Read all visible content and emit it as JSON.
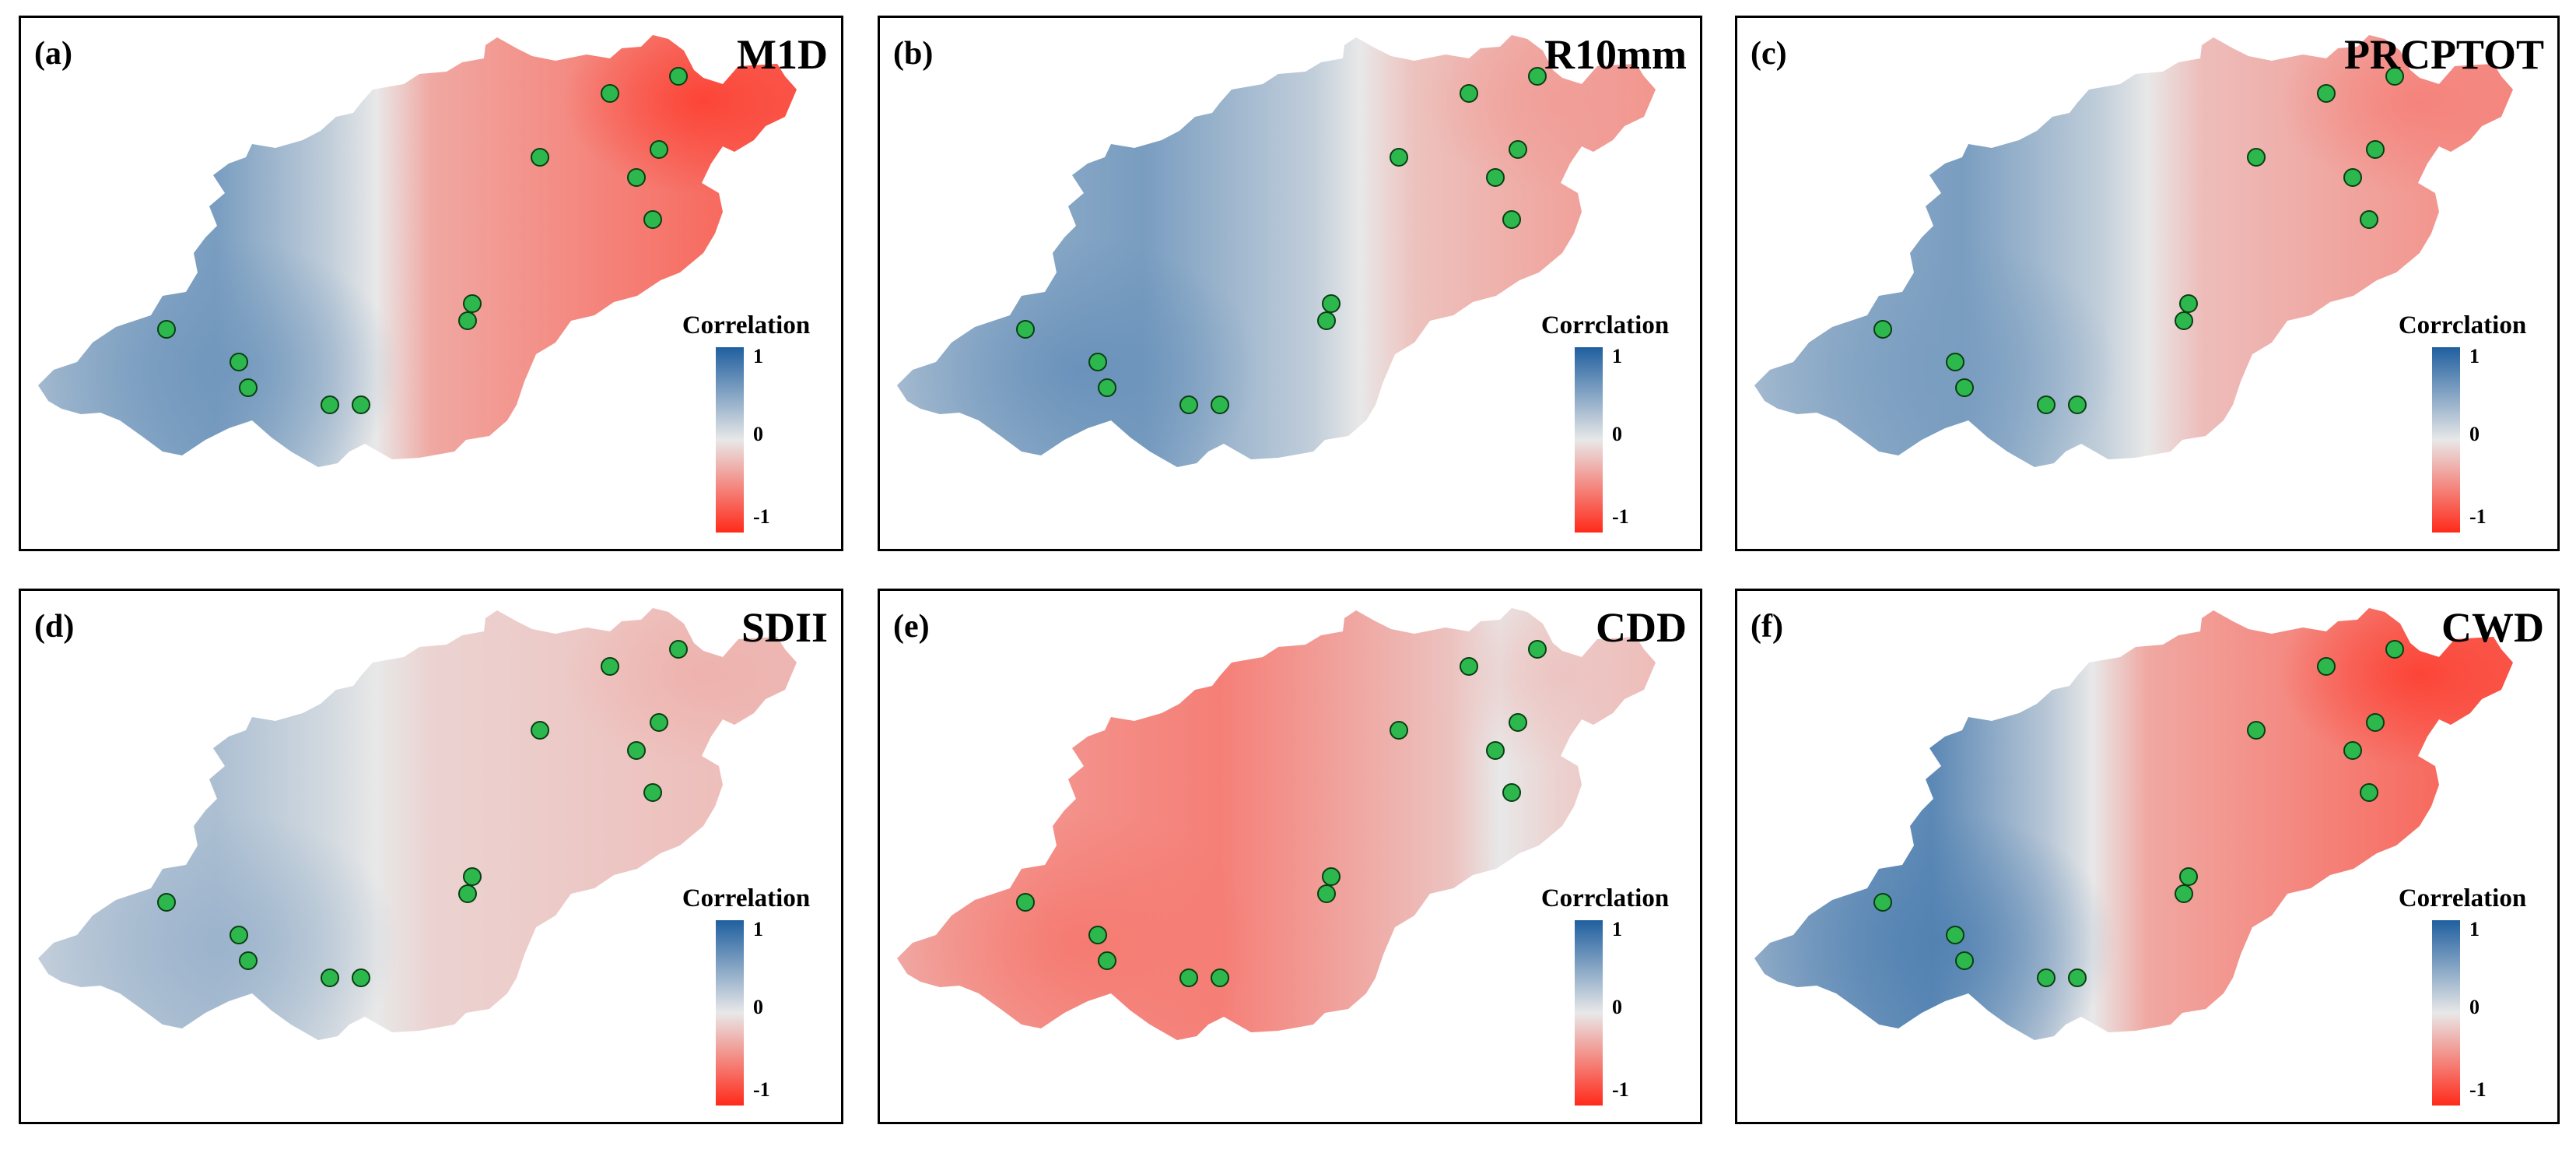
{
  "figure": {
    "colors": {
      "positive": "#1f5f9f",
      "neutral": "#e8e8e8",
      "negative": "#ff2a1a",
      "station_fill": "#2db84d",
      "station_stroke": "#0a3d14",
      "frame": "#000000"
    },
    "panels": [
      {
        "panel_label": "(a)",
        "index_name": "M1D",
        "legend_title": "Correlation",
        "legend_ticks": [
          "1",
          "0",
          "-1"
        ],
        "field": {
          "west_blue": 0.55,
          "east_red": 0.75,
          "divide": 0.46,
          "blue_core": 0.6,
          "red_core": 0.9
        }
      },
      {
        "panel_label": "(b)",
        "index_name": "R10mm",
        "legend_title": "Corrclation",
        "legend_ticks": [
          "1",
          "0",
          "-1"
        ],
        "field": {
          "west_blue": 0.55,
          "east_red": 0.45,
          "divide": 0.62,
          "blue_core": 0.65,
          "red_core": 0.4
        }
      },
      {
        "panel_label": "(c)",
        "index_name": "PRCPTOT",
        "legend_title": "Corrclation",
        "legend_ticks": [
          "1",
          "0",
          "-1"
        ],
        "field": {
          "west_blue": 0.55,
          "east_red": 0.5,
          "divide": 0.53,
          "blue_core": 0.55,
          "red_core": 0.55
        }
      },
      {
        "panel_label": "(d)",
        "index_name": "SDII",
        "legend_title": "Correlation",
        "legend_ticks": [
          "1",
          "0",
          "-1"
        ],
        "field": {
          "west_blue": 0.3,
          "east_red": 0.25,
          "divide": 0.46,
          "blue_core": 0.4,
          "red_core": 0.3
        }
      },
      {
        "panel_label": "(e)",
        "index_name": "CDD",
        "legend_title": "Corrclation",
        "legend_ticks": [
          "1",
          "0",
          "-1"
        ],
        "field": {
          "west_blue": -0.55,
          "east_red": 0.25,
          "divide": 0.8,
          "blue_core": -0.6,
          "red_core": 0.2
        }
      },
      {
        "panel_label": "(f)",
        "index_name": "CWD",
        "legend_title": "Correlation",
        "legend_ticks": [
          "1",
          "0",
          "-1"
        ],
        "field": {
          "west_blue": 0.7,
          "east_red": 0.75,
          "divide": 0.46,
          "blue_core": 0.75,
          "red_core": 0.9
        }
      }
    ]
  }
}
